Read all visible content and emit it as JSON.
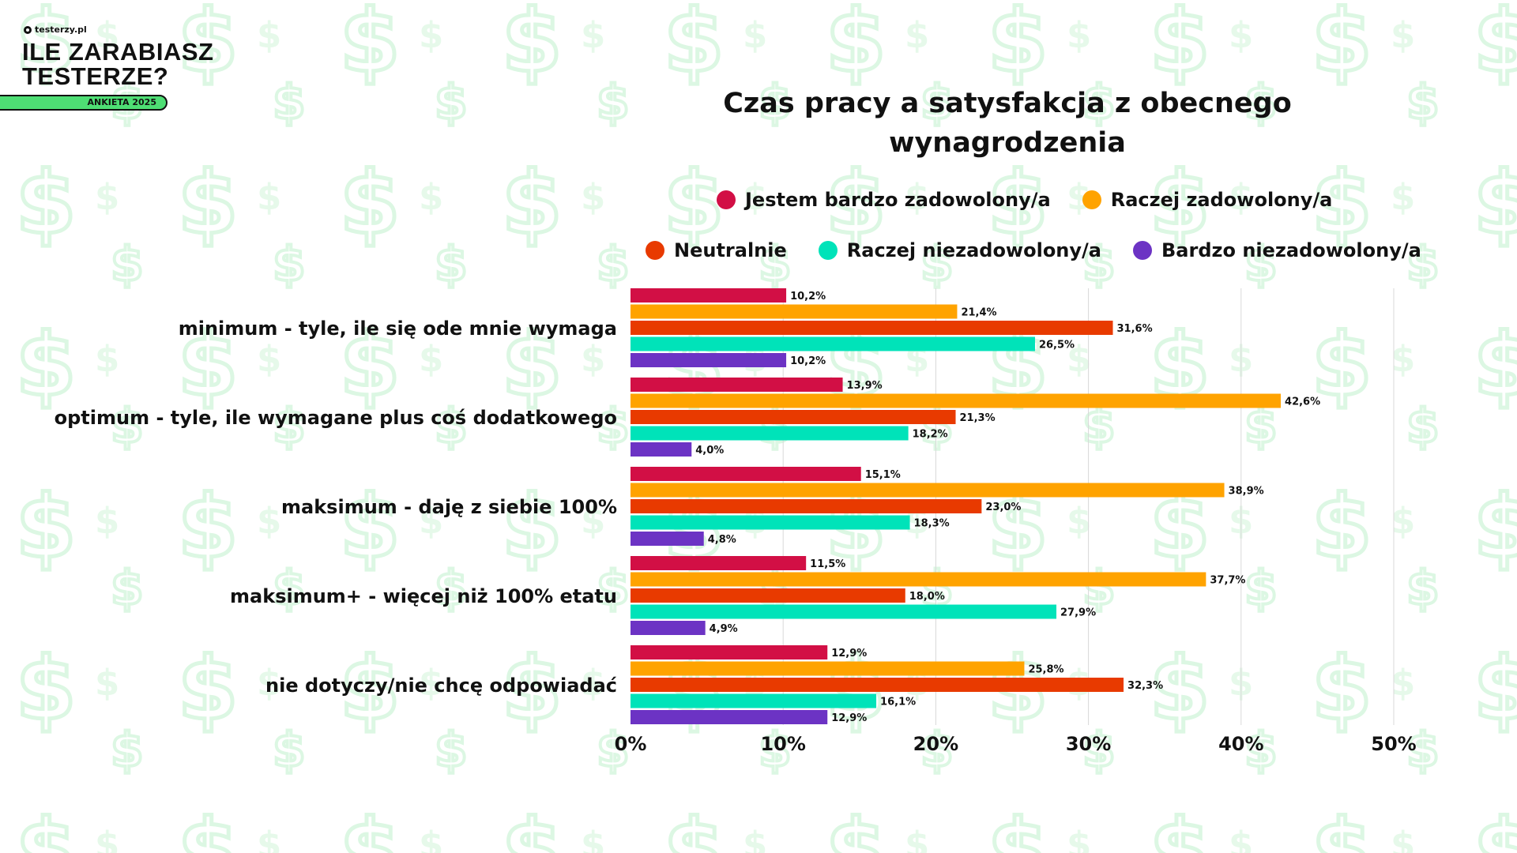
{
  "header": {
    "site": "testerzy.pl",
    "brand_line1": "ILE ZARABIASZ",
    "brand_line2": "TESTERZE?",
    "badge": "ANKIETA 2025"
  },
  "colors": {
    "s1": "#d20f45",
    "s2": "#ffa300",
    "s3": "#e83a00",
    "s4": "#00e3b9",
    "s5": "#6c33c4",
    "bg_pattern": "#dcf7e3",
    "badge": "#4ede74"
  },
  "chart_data": {
    "type": "bar",
    "orientation": "horizontal",
    "title": "Czas pracy a satysfakcja z obecnego wynagrodzenia",
    "title_line1": "Czas pracy a satysfakcja z obecnego",
    "title_line2": "wynagrodzenia",
    "categories": [
      "minimum - tyle, ile się ode mnie wymaga",
      "optimum - tyle, ile wymagane plus coś dodatkowego",
      "maksimum - daję z siebie 100%",
      "maksimum+ - więcej niż 100% etatu",
      "nie dotyczy/nie chcę odpowiadać"
    ],
    "series": [
      {
        "name": "Jestem bardzo zadowolony/a",
        "values": [
          10.2,
          13.9,
          15.1,
          11.5,
          12.9
        ]
      },
      {
        "name": "Raczej zadowolony/a",
        "values": [
          21.4,
          42.6,
          38.9,
          37.7,
          25.8
        ]
      },
      {
        "name": "Neutralnie",
        "values": [
          31.6,
          21.3,
          23.0,
          18.0,
          32.3
        ]
      },
      {
        "name": "Raczej niezadowolony/a",
        "values": [
          26.5,
          18.2,
          18.3,
          27.9,
          16.1
        ]
      },
      {
        "name": "Bardzo niezadowolony/a",
        "values": [
          10.2,
          4.0,
          4.8,
          4.9,
          12.9
        ]
      }
    ],
    "xlim": [
      0,
      50
    ],
    "xticks": [
      "0%",
      "10%",
      "20%",
      "30%",
      "40%",
      "50%"
    ],
    "grid": true,
    "legend_placement": "top"
  }
}
